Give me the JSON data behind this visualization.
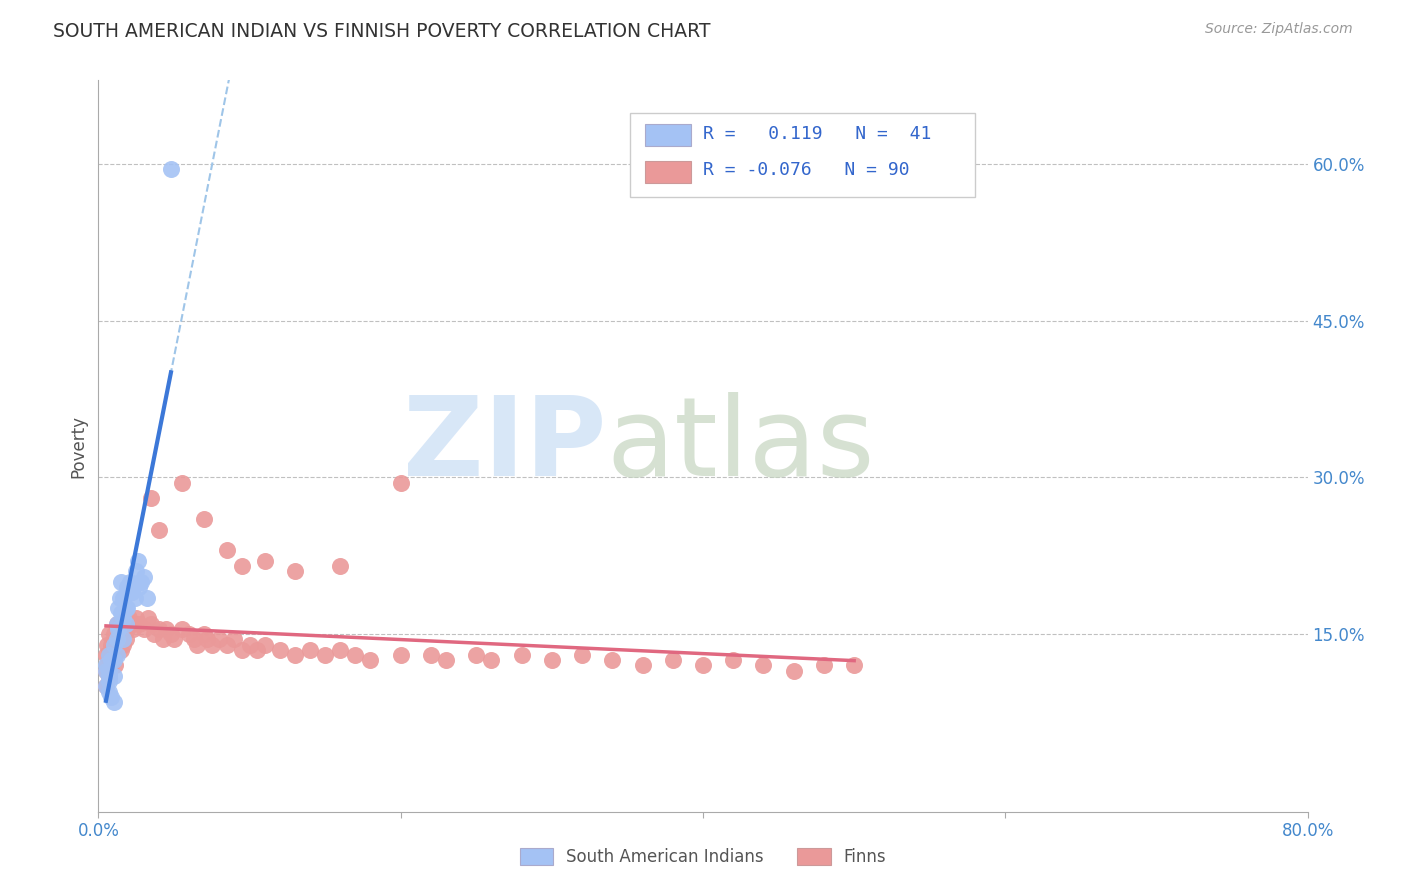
{
  "title": "SOUTH AMERICAN INDIAN VS FINNISH POVERTY CORRELATION CHART",
  "source": "Source: ZipAtlas.com",
  "ylabel": "Poverty",
  "xlim": [
    0.0,
    0.8
  ],
  "ylim": [
    -0.02,
    0.68
  ],
  "xticks": [
    0.0,
    0.2,
    0.4,
    0.6,
    0.8
  ],
  "xtick_labels": [
    "0.0%",
    "",
    "",
    "",
    "80.0%"
  ],
  "ytick_labels_right": [
    "60.0%",
    "45.0%",
    "30.0%",
    "15.0%"
  ],
  "ytick_positions_right": [
    0.6,
    0.45,
    0.3,
    0.15
  ],
  "blue_color": "#a4c2f4",
  "pink_color": "#ea9999",
  "blue_line_color": "#3c78d8",
  "pink_line_color": "#e06880",
  "dashed_line_color": "#9fc5e8",
  "background_color": "#ffffff",
  "grid_color": "#c0c0c0",
  "blue_scatter_x": [
    0.005,
    0.005,
    0.005,
    0.007,
    0.007,
    0.007,
    0.007,
    0.007,
    0.008,
    0.008,
    0.01,
    0.01,
    0.01,
    0.01,
    0.012,
    0.012,
    0.012,
    0.013,
    0.013,
    0.014,
    0.015,
    0.015,
    0.016,
    0.016,
    0.016,
    0.018,
    0.018,
    0.019,
    0.019,
    0.02,
    0.021,
    0.022,
    0.023,
    0.024,
    0.025,
    0.026,
    0.027,
    0.028,
    0.03,
    0.032,
    0.048
  ],
  "blue_scatter_y": [
    0.12,
    0.115,
    0.1,
    0.13,
    0.115,
    0.11,
    0.105,
    0.095,
    0.125,
    0.09,
    0.14,
    0.125,
    0.11,
    0.085,
    0.16,
    0.145,
    0.13,
    0.175,
    0.155,
    0.185,
    0.2,
    0.17,
    0.185,
    0.165,
    0.145,
    0.175,
    0.16,
    0.195,
    0.175,
    0.195,
    0.2,
    0.19,
    0.195,
    0.185,
    0.21,
    0.22,
    0.195,
    0.2,
    0.205,
    0.185,
    0.595
  ],
  "pink_scatter_x": [
    0.005,
    0.005,
    0.005,
    0.006,
    0.006,
    0.007,
    0.007,
    0.007,
    0.008,
    0.008,
    0.009,
    0.01,
    0.01,
    0.011,
    0.011,
    0.012,
    0.012,
    0.013,
    0.013,
    0.014,
    0.015,
    0.015,
    0.016,
    0.016,
    0.017,
    0.018,
    0.018,
    0.019,
    0.02,
    0.022,
    0.023,
    0.025,
    0.027,
    0.03,
    0.033,
    0.035,
    0.037,
    0.04,
    0.043,
    0.045,
    0.048,
    0.05,
    0.055,
    0.06,
    0.063,
    0.065,
    0.07,
    0.072,
    0.075,
    0.08,
    0.085,
    0.09,
    0.095,
    0.1,
    0.105,
    0.11,
    0.12,
    0.13,
    0.14,
    0.15,
    0.16,
    0.17,
    0.18,
    0.2,
    0.22,
    0.23,
    0.25,
    0.26,
    0.28,
    0.3,
    0.32,
    0.34,
    0.36,
    0.38,
    0.4,
    0.42,
    0.44,
    0.46,
    0.48,
    0.5,
    0.035,
    0.04,
    0.055,
    0.07,
    0.085,
    0.095,
    0.11,
    0.13,
    0.16,
    0.2
  ],
  "pink_scatter_y": [
    0.13,
    0.115,
    0.1,
    0.14,
    0.12,
    0.15,
    0.13,
    0.11,
    0.14,
    0.12,
    0.135,
    0.15,
    0.125,
    0.14,
    0.12,
    0.16,
    0.14,
    0.155,
    0.135,
    0.16,
    0.155,
    0.135,
    0.16,
    0.14,
    0.155,
    0.165,
    0.145,
    0.155,
    0.165,
    0.16,
    0.155,
    0.165,
    0.16,
    0.155,
    0.165,
    0.16,
    0.15,
    0.155,
    0.145,
    0.155,
    0.15,
    0.145,
    0.155,
    0.15,
    0.145,
    0.14,
    0.15,
    0.145,
    0.14,
    0.145,
    0.14,
    0.145,
    0.135,
    0.14,
    0.135,
    0.14,
    0.135,
    0.13,
    0.135,
    0.13,
    0.135,
    0.13,
    0.125,
    0.13,
    0.13,
    0.125,
    0.13,
    0.125,
    0.13,
    0.125,
    0.13,
    0.125,
    0.12,
    0.125,
    0.12,
    0.125,
    0.12,
    0.115,
    0.12,
    0.12,
    0.28,
    0.25,
    0.295,
    0.26,
    0.23,
    0.215,
    0.22,
    0.21,
    0.215,
    0.295
  ]
}
